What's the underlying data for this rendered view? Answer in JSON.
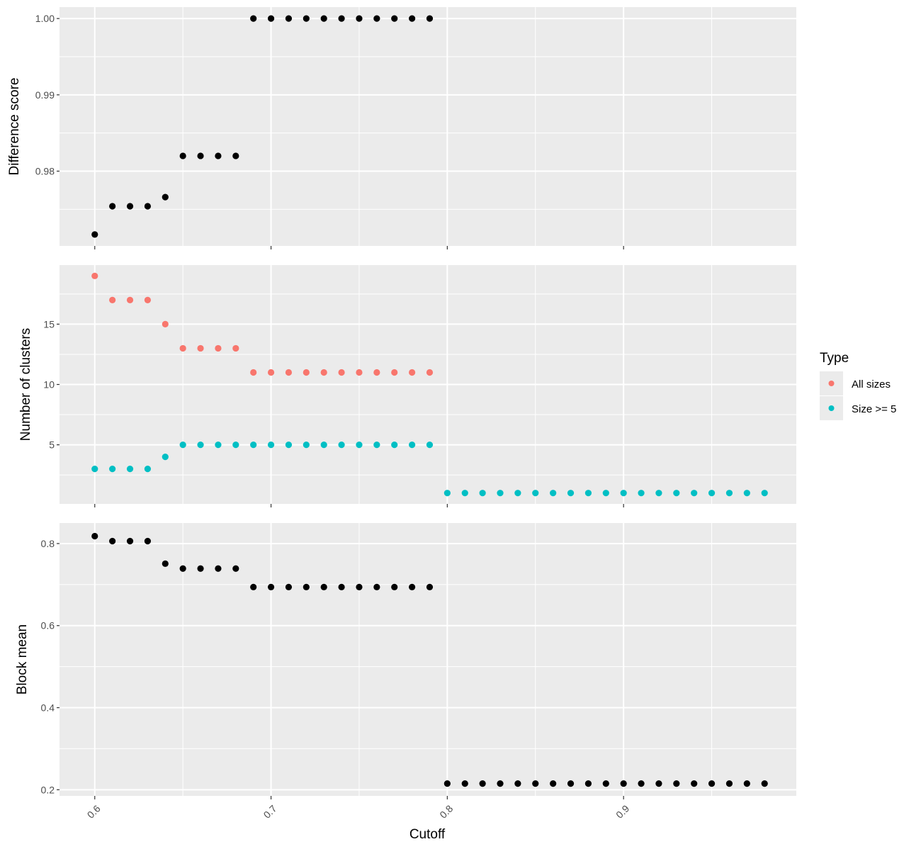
{
  "chart_data": {
    "type": "scatter",
    "xlabel": "Cutoff",
    "x_ticks": [
      "0.6",
      "0.7",
      "0.8",
      "0.9"
    ],
    "x_range": [
      0.58,
      0.998
    ],
    "colors": {
      "All sizes": "#F8766D",
      "Size >= 5": "#00BFC4",
      "single": "#000000"
    },
    "legend": {
      "title": "Type",
      "position": "right",
      "entries": [
        "All sizes",
        "Size >= 5"
      ]
    },
    "panels": [
      {
        "ylabel": "Difference score",
        "y_ticks": [
          "1.00",
          "0.99",
          "0.98"
        ],
        "y_range": [
          0.9702,
          1.0015
        ],
        "series": [
          {
            "color_key": "single",
            "x": [
              0.6,
              0.61,
              0.62,
              0.63,
              0.64,
              0.65,
              0.66,
              0.67,
              0.68,
              0.69,
              0.7,
              0.71,
              0.72,
              0.73,
              0.74,
              0.75,
              0.76,
              0.77,
              0.78,
              0.79
            ],
            "y": [
              0.9717,
              0.9754,
              0.9754,
              0.9754,
              0.9766,
              0.982,
              0.982,
              0.982,
              0.982,
              1.0,
              1.0,
              1.0,
              1.0,
              1.0,
              1.0,
              1.0,
              1.0,
              1.0,
              1.0,
              1.0
            ]
          }
        ]
      },
      {
        "ylabel": "Number of clusters",
        "y_ticks": [
          "15",
          "10",
          "5"
        ],
        "y_range": [
          0.1,
          19.9
        ],
        "series": [
          {
            "name": "All sizes",
            "color_key": "All sizes",
            "x": [
              0.6,
              0.61,
              0.62,
              0.63,
              0.64,
              0.65,
              0.66,
              0.67,
              0.68,
              0.69,
              0.7,
              0.71,
              0.72,
              0.73,
              0.74,
              0.75,
              0.76,
              0.77,
              0.78,
              0.79
            ],
            "y": [
              19,
              17,
              17,
              17,
              15,
              13,
              13,
              13,
              13,
              11,
              11,
              11,
              11,
              11,
              11,
              11,
              11,
              11,
              11,
              11
            ]
          },
          {
            "name": "Size >= 5",
            "color_key": "Size >= 5",
            "x": [
              0.6,
              0.61,
              0.62,
              0.63,
              0.64,
              0.65,
              0.66,
              0.67,
              0.68,
              0.69,
              0.7,
              0.71,
              0.72,
              0.73,
              0.74,
              0.75,
              0.76,
              0.77,
              0.78,
              0.79,
              0.8,
              0.81,
              0.82,
              0.83,
              0.84,
              0.85,
              0.86,
              0.87,
              0.88,
              0.89,
              0.9,
              0.91,
              0.92,
              0.93,
              0.94,
              0.95,
              0.96,
              0.97,
              0.98
            ],
            "y": [
              3,
              3,
              3,
              3,
              4,
              5,
              5,
              5,
              5,
              5,
              5,
              5,
              5,
              5,
              5,
              5,
              5,
              5,
              5,
              5,
              1,
              1,
              1,
              1,
              1,
              1,
              1,
              1,
              1,
              1,
              1,
              1,
              1,
              1,
              1,
              1,
              1,
              1,
              1
            ]
          }
        ]
      },
      {
        "ylabel": "Block mean",
        "y_ticks": [
          "0.8",
          "0.6",
          "0.4",
          "0.2"
        ],
        "y_range": [
          0.185,
          0.85
        ],
        "series": [
          {
            "color_key": "single",
            "x": [
              0.6,
              0.61,
              0.62,
              0.63,
              0.64,
              0.65,
              0.66,
              0.67,
              0.68,
              0.69,
              0.7,
              0.71,
              0.72,
              0.73,
              0.74,
              0.75,
              0.76,
              0.77,
              0.78,
              0.79,
              0.8,
              0.81,
              0.82,
              0.83,
              0.84,
              0.85,
              0.86,
              0.87,
              0.88,
              0.89,
              0.9,
              0.91,
              0.92,
              0.93,
              0.94,
              0.95,
              0.96,
              0.97,
              0.98
            ],
            "y": [
              0.818,
              0.806,
              0.806,
              0.806,
              0.751,
              0.739,
              0.739,
              0.739,
              0.739,
              0.694,
              0.694,
              0.694,
              0.694,
              0.694,
              0.694,
              0.694,
              0.694,
              0.694,
              0.694,
              0.694,
              0.215,
              0.215,
              0.215,
              0.215,
              0.215,
              0.215,
              0.215,
              0.215,
              0.215,
              0.215,
              0.215,
              0.215,
              0.215,
              0.215,
              0.215,
              0.215,
              0.215,
              0.215,
              0.215
            ]
          }
        ]
      }
    ]
  }
}
